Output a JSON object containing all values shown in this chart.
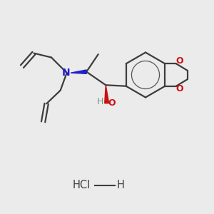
{
  "bg_color": "#ebebeb",
  "bond_color": "#3a3f3a",
  "n_color": "#2020cc",
  "o_color": "#cc1010",
  "h_color": "#6a9a7a",
  "o_text": "O",
  "n_text": "N",
  "oh_text": "O",
  "h_text": "H"
}
